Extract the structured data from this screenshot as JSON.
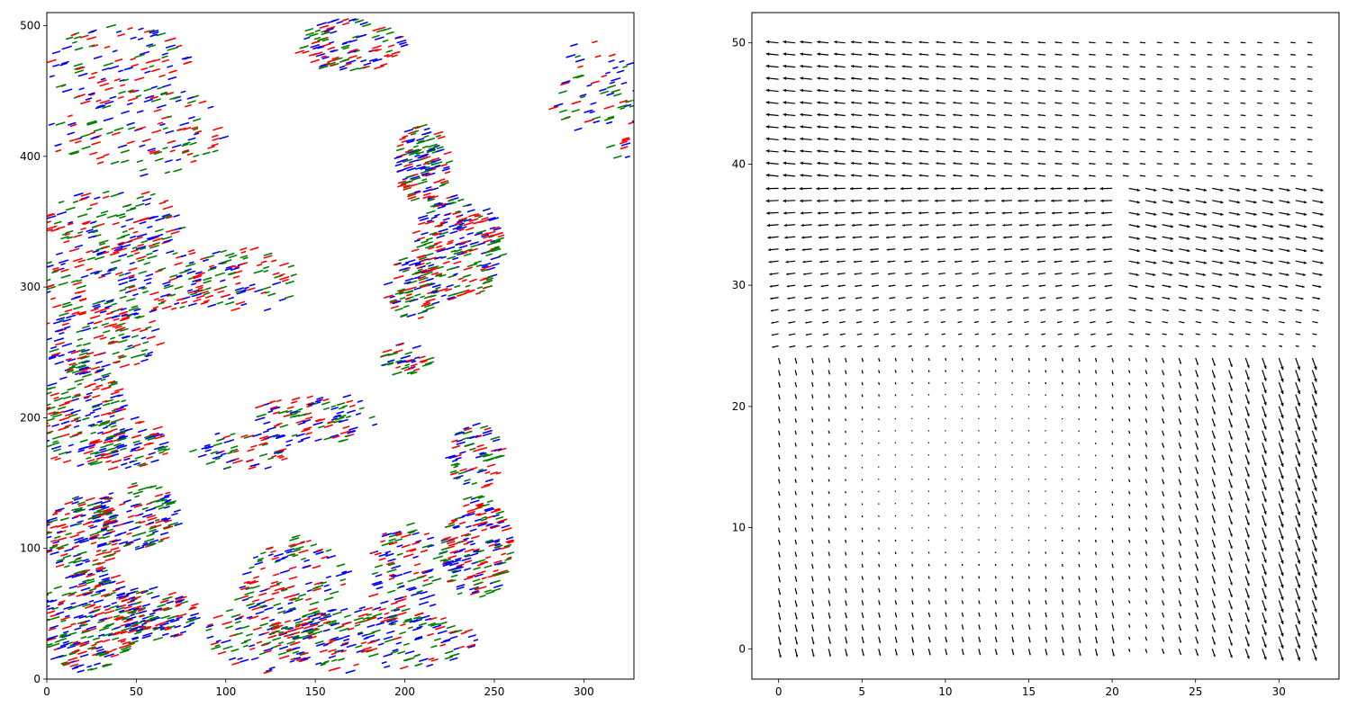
{
  "chart_data": [
    {
      "type": "scatter",
      "title": "",
      "xlabel": "",
      "ylabel": "",
      "xlim": [
        0,
        328
      ],
      "ylim": [
        0,
        510
      ],
      "grid": false,
      "x_ticks": [
        0,
        50,
        100,
        150,
        200,
        250,
        300
      ],
      "y_ticks": [
        0,
        100,
        200,
        300,
        400,
        500
      ],
      "series_colors": [
        "#ff0000",
        "#008000",
        "#0000ff"
      ],
      "clusters": [
        {
          "cx": 25,
          "cy": 45,
          "rx": 30,
          "ry": 40,
          "n": 260
        },
        {
          "cx": 60,
          "cy": 50,
          "rx": 25,
          "ry": 20,
          "n": 120
        },
        {
          "cx": 20,
          "cy": 110,
          "rx": 22,
          "ry": 30,
          "n": 140
        },
        {
          "cx": 50,
          "cy": 125,
          "rx": 25,
          "ry": 25,
          "n": 120
        },
        {
          "cx": 20,
          "cy": 200,
          "rx": 25,
          "ry": 40,
          "n": 180
        },
        {
          "cx": 45,
          "cy": 180,
          "rx": 25,
          "ry": 20,
          "n": 80
        },
        {
          "cx": 30,
          "cy": 260,
          "rx": 35,
          "ry": 25,
          "n": 120
        },
        {
          "cx": 45,
          "cy": 305,
          "rx": 55,
          "ry": 30,
          "n": 200
        },
        {
          "cx": 40,
          "cy": 350,
          "rx": 40,
          "ry": 25,
          "n": 120
        },
        {
          "cx": 50,
          "cy": 420,
          "rx": 50,
          "ry": 35,
          "n": 130
        },
        {
          "cx": 40,
          "cy": 470,
          "rx": 40,
          "ry": 30,
          "n": 100
        },
        {
          "cx": 110,
          "cy": 305,
          "rx": 30,
          "ry": 25,
          "n": 80
        },
        {
          "cx": 150,
          "cy": 200,
          "rx": 35,
          "ry": 20,
          "n": 100
        },
        {
          "cx": 110,
          "cy": 175,
          "rx": 30,
          "ry": 15,
          "n": 60
        },
        {
          "cx": 170,
          "cy": 485,
          "rx": 30,
          "ry": 20,
          "n": 110
        },
        {
          "cx": 230,
          "cy": 330,
          "rx": 25,
          "ry": 40,
          "n": 220
        },
        {
          "cx": 210,
          "cy": 395,
          "rx": 15,
          "ry": 30,
          "n": 130
        },
        {
          "cx": 205,
          "cy": 300,
          "rx": 15,
          "ry": 25,
          "n": 80
        },
        {
          "cx": 240,
          "cy": 100,
          "rx": 20,
          "ry": 40,
          "n": 180
        },
        {
          "cx": 240,
          "cy": 170,
          "rx": 15,
          "ry": 25,
          "n": 70
        },
        {
          "cx": 180,
          "cy": 30,
          "rx": 60,
          "ry": 25,
          "n": 220
        },
        {
          "cx": 140,
          "cy": 70,
          "rx": 30,
          "ry": 40,
          "n": 130
        },
        {
          "cx": 120,
          "cy": 40,
          "rx": 30,
          "ry": 35,
          "n": 100
        },
        {
          "cx": 200,
          "cy": 80,
          "rx": 20,
          "ry": 40,
          "n": 100
        },
        {
          "cx": 200,
          "cy": 245,
          "rx": 15,
          "ry": 12,
          "n": 40
        },
        {
          "cx": 300,
          "cy": 450,
          "rx": 20,
          "ry": 40,
          "n": 40
        },
        {
          "cx": 320,
          "cy": 440,
          "rx": 10,
          "ry": 50,
          "n": 30
        }
      ]
    },
    {
      "type": "quiver",
      "title": "",
      "xlabel": "",
      "ylabel": "",
      "xlim": [
        -1.6,
        33.6
      ],
      "ylim": [
        -2.5,
        52.5
      ],
      "grid": false,
      "x_ticks": [
        0,
        5,
        10,
        15,
        20,
        25,
        30
      ],
      "y_ticks": [
        0,
        10,
        20,
        30,
        40,
        50
      ],
      "x_grid": [
        0,
        32
      ],
      "y_grid": [
        0,
        50
      ],
      "arrow_color": "#000000"
    }
  ]
}
